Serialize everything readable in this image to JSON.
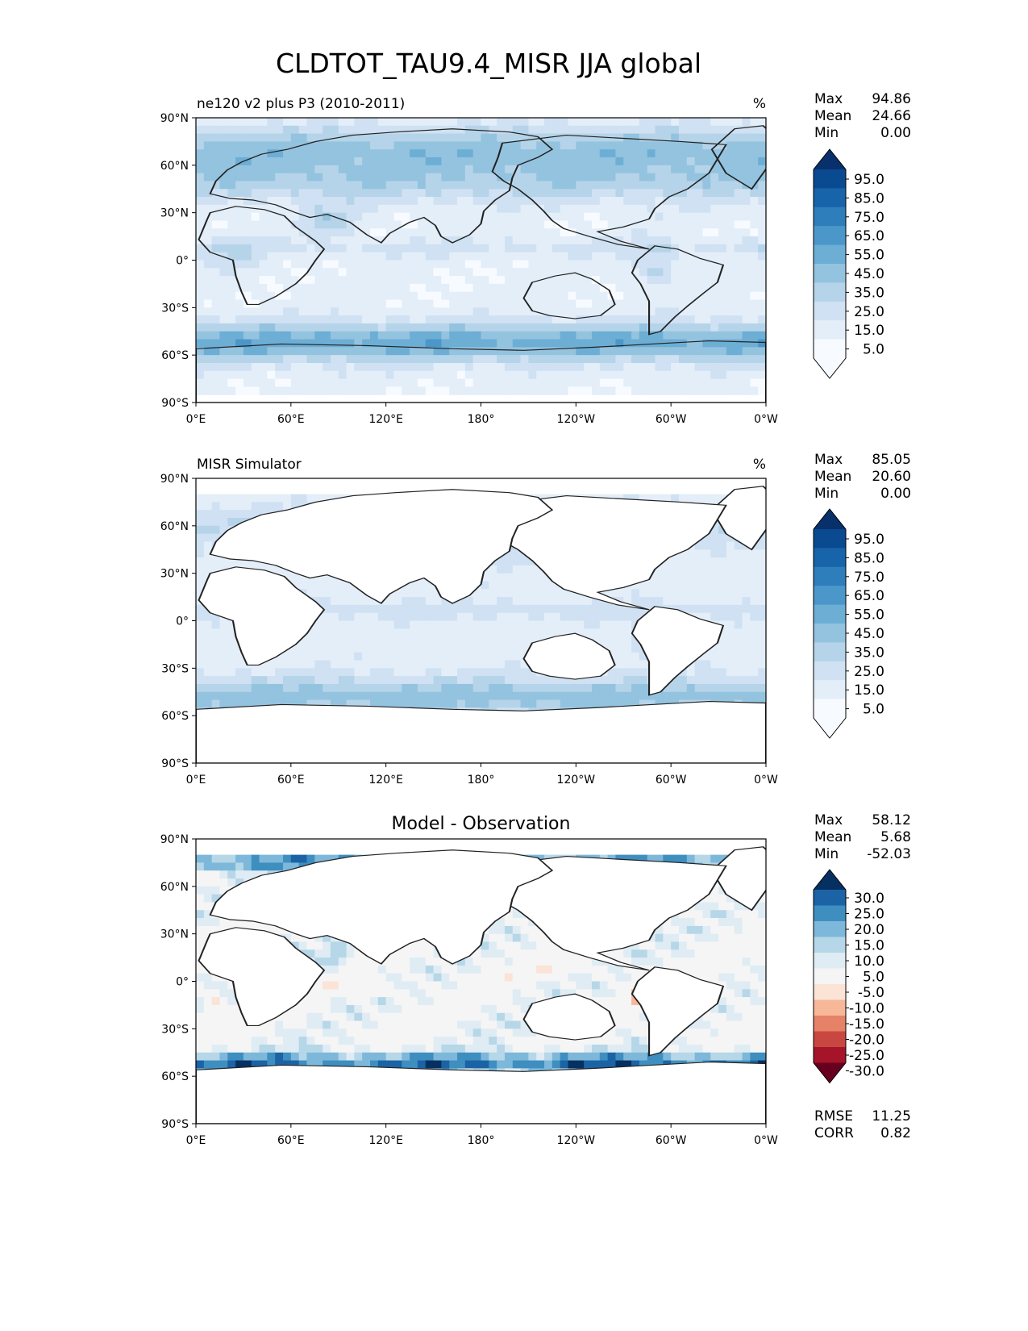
{
  "figure": {
    "title": "CLDTOT_TAU9.4_MISR JJA global"
  },
  "axes": {
    "lat_ticks": [
      "90°N",
      "60°N",
      "30°N",
      "0°",
      "30°S",
      "60°S",
      "90°S"
    ],
    "lon_ticks": [
      "0°E",
      "60°E",
      "120°E",
      "180°",
      "120°W",
      "60°W",
      "0°W"
    ]
  },
  "colors": {
    "blues": [
      "#f7fbff",
      "#e3eef9",
      "#cfe1f2",
      "#b5d4e9",
      "#93c3df",
      "#6daed5",
      "#4b97c9",
      "#2f7ebc",
      "#1864aa",
      "#0a4a90",
      "#08306b"
    ],
    "diff": [
      "#67001f",
      "#a51429",
      "#c94741",
      "#e58267",
      "#f7b799",
      "#fbe3d6",
      "#f5f5f5",
      "#dfecf4",
      "#b6d7e8",
      "#7db8da",
      "#3f8ec0",
      "#1b63a5",
      "#053061"
    ],
    "land_outline": "#222222"
  },
  "chart_data": [
    {
      "type": "heatmap",
      "title": "ne120 v2 plus P3 (2010-2011)",
      "units": "%",
      "xlim": [
        0,
        360
      ],
      "ylim": [
        -90,
        90
      ],
      "stats": {
        "max_label": "Max",
        "max": "94.86",
        "mean_label": "Mean",
        "mean": "24.66",
        "min_label": "Min",
        "min": "0.00"
      },
      "colorbar": {
        "labels": [
          "95.0",
          "85.0",
          "75.0",
          "65.0",
          "55.0",
          "45.0",
          "35.0",
          "25.0",
          "15.0",
          "5.0"
        ]
      }
    },
    {
      "type": "heatmap",
      "title": "MISR Simulator",
      "units": "%",
      "xlim": [
        0,
        360
      ],
      "ylim": [
        -90,
        90
      ],
      "stats": {
        "max_label": "Max",
        "max": "85.05",
        "mean_label": "Mean",
        "mean": "20.60",
        "min_label": "Min",
        "min": "0.00"
      },
      "colorbar": {
        "labels": [
          "95.0",
          "85.0",
          "75.0",
          "65.0",
          "55.0",
          "45.0",
          "35.0",
          "25.0",
          "15.0",
          "5.0"
        ]
      }
    },
    {
      "type": "heatmap",
      "title": "Model - Observation",
      "units": "",
      "xlim": [
        0,
        360
      ],
      "ylim": [
        -90,
        90
      ],
      "stats": {
        "max_label": "Max",
        "max": "58.12",
        "mean_label": "Mean",
        "mean": "5.68",
        "min_label": "Min",
        "min": "-52.03"
      },
      "colorbar": {
        "labels": [
          "30.0",
          "25.0",
          "20.0",
          "15.0",
          "10.0",
          "5.0",
          "-5.0",
          "-10.0",
          "-15.0",
          "-20.0",
          "-25.0",
          "-30.0"
        ]
      },
      "metrics": {
        "rmse_label": "RMSE",
        "rmse": "11.25",
        "corr_label": "CORR",
        "corr": "0.82"
      }
    }
  ]
}
